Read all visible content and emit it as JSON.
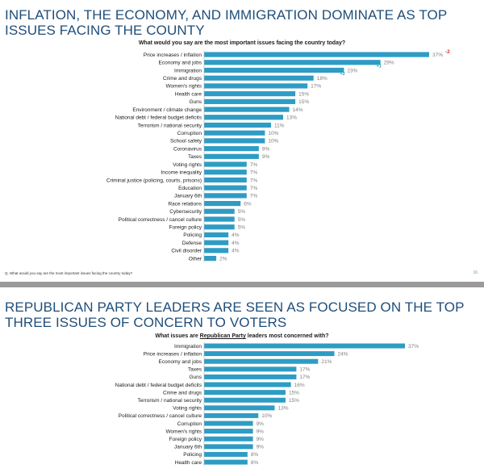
{
  "slides": [
    {
      "title": "INFLATION, THE ECONOMY, AND IMMIGRATION DOMINATE AS TOP ISSUES FACING THE COUNTY",
      "question": "What would you say are the most important issues facing the country today?",
      "footnote": "Q. What would you say are the most important issues facing the country today?",
      "page_number": "16",
      "change_labels": [
        {
          "category": "Price increases / inflation",
          "text": "-2",
          "color": "#e0262e"
        },
        {
          "category": "Economy and jobs",
          "text": "+1",
          "color": "#2e9cc4"
        },
        {
          "category": "Immigration",
          "text": "+2",
          "color": "#2e9cc4"
        }
      ]
    },
    {
      "title": "REPUBLICAN PARTY LEADERS ARE SEEN AS FOCUSED ON THE TOP THREE ISSUES OF CONCERN TO VOTERS",
      "question_prefix": "What issues are ",
      "question_emph": "Republican Party",
      "question_suffix": " leaders most concerned with?"
    }
  ],
  "chart_data": [
    {
      "type": "bar",
      "orientation": "horizontal",
      "title": "What would you say are the most important issues facing the country today?",
      "categories": [
        "Price increases / inflation",
        "Economy and jobs",
        "Immigration",
        "Crime and drugs",
        "Women's rights",
        "Health care",
        "Guns",
        "Environment / climate change",
        "National debt / federal budget deficits",
        "Terrorism / national security",
        "Corruption",
        "School safety",
        "Coronavirus",
        "Taxes",
        "Voting rights",
        "Income inequality",
        "Criminal justice (policing, courts, prisons)",
        "Education",
        "January 6th",
        "Race relations",
        "Cybersecurity",
        "Political correctness / cancel culture",
        "Foreign policy",
        "Policing",
        "Defense",
        "Civil disorder",
        "Other"
      ],
      "values": [
        37,
        29,
        23,
        18,
        17,
        15,
        15,
        14,
        13,
        11,
        10,
        10,
        9,
        9,
        7,
        7,
        7,
        7,
        7,
        6,
        5,
        5,
        5,
        4,
        4,
        4,
        2
      ],
      "value_labels": [
        "37%",
        "29%",
        "23%",
        "18%",
        "17%",
        "15%",
        "15%",
        "14%",
        "13%",
        "11%",
        "10%",
        "10%",
        "9%",
        "9%",
        "7%",
        "7%",
        "7%",
        "7%",
        "7%",
        "6%",
        "5%",
        "5%",
        "5%",
        "4%",
        "4%",
        "4%",
        "2%"
      ],
      "bar_color": "#2e9cc4",
      "grid": false
    },
    {
      "type": "bar",
      "orientation": "horizontal",
      "title": "What issues are Republican Party leaders most concerned with?",
      "categories": [
        "Immigration",
        "Price increases / inflation",
        "Economy and jobs",
        "Taxes",
        "Guns",
        "National debt / federal budget deficits",
        "Crime and drugs",
        "Terrorism / national security",
        "Voting rights",
        "Political correctness / cancel culture",
        "Corruption",
        "Women's rights",
        "Foreign policy",
        "January 6th",
        "Policing",
        "Health care"
      ],
      "values": [
        37,
        24,
        21,
        17,
        17,
        16,
        15,
        15,
        13,
        10,
        9,
        9,
        9,
        9,
        8,
        8
      ],
      "value_labels": [
        "37%",
        "24%",
        "21%",
        "17%",
        "17%",
        "16%",
        "15%",
        "15%",
        "13%",
        "10%",
        "9%",
        "9%",
        "9%",
        "9%",
        "8%",
        "8%"
      ],
      "bar_color": "#2e9cc4",
      "grid": false
    }
  ]
}
